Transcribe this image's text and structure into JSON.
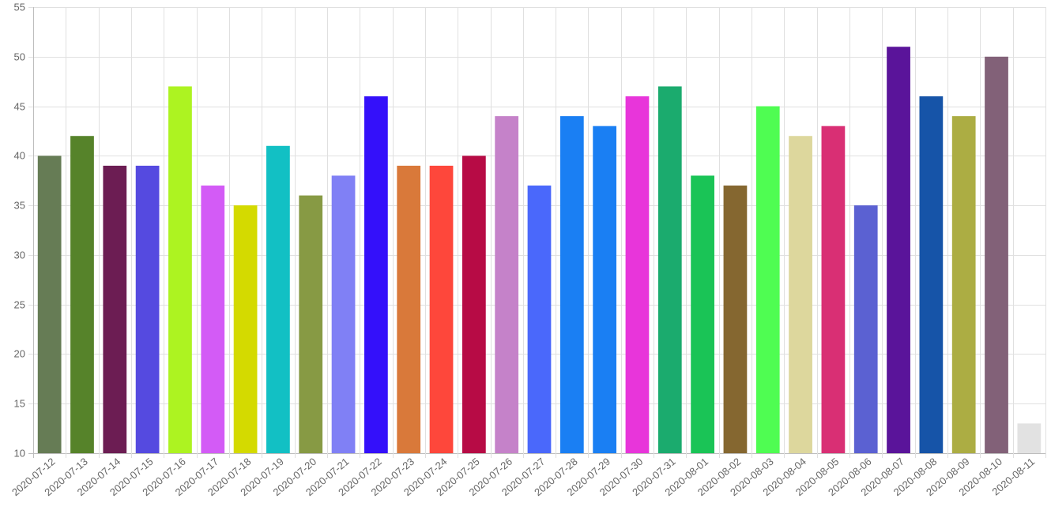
{
  "chart_data": {
    "type": "bar",
    "title": "",
    "xlabel": "",
    "ylabel": "",
    "ylim": [
      10,
      55
    ],
    "ytick_step": 5,
    "grid": true,
    "categories": [
      "2020-07-12",
      "2020-07-13",
      "2020-07-14",
      "2020-07-15",
      "2020-07-16",
      "2020-07-17",
      "2020-07-18",
      "2020-07-19",
      "2020-07-20",
      "2020-07-21",
      "2020-07-22",
      "2020-07-23",
      "2020-07-24",
      "2020-07-25",
      "2020-07-26",
      "2020-07-27",
      "2020-07-28",
      "2020-07-29",
      "2020-07-30",
      "2020-07-31",
      "2020-08-01",
      "2020-08-02",
      "2020-08-03",
      "2020-08-04",
      "2020-08-05",
      "2020-08-06",
      "2020-08-07",
      "2020-08-08",
      "2020-08-09",
      "2020-08-10",
      "2020-08-11"
    ],
    "values": [
      40,
      42,
      39,
      39,
      47,
      37,
      35,
      41,
      36,
      38,
      46,
      39,
      39,
      40,
      44,
      37,
      44,
      43,
      46,
      47,
      38,
      37,
      45,
      42,
      43,
      35,
      51,
      46,
      44,
      50,
      13
    ],
    "colors": [
      "#667c55",
      "#56832a",
      "#6c1d53",
      "#554ae0",
      "#adf321",
      "#d35bf6",
      "#d4da00",
      "#12c0c4",
      "#879a44",
      "#8080f5",
      "#3410fa",
      "#d9793a",
      "#fe473b",
      "#b70b45",
      "#c582c9",
      "#4a68fb",
      "#1a7ff3",
      "#1a7ff3",
      "#e835da",
      "#1bab6e",
      "#1ac456",
      "#856730",
      "#4ffd52",
      "#ddd79d",
      "#d92f74",
      "#5b61d2",
      "#5a149a",
      "#1654a8",
      "#acad43",
      "#826178",
      "#e2e2e2"
    ]
  }
}
